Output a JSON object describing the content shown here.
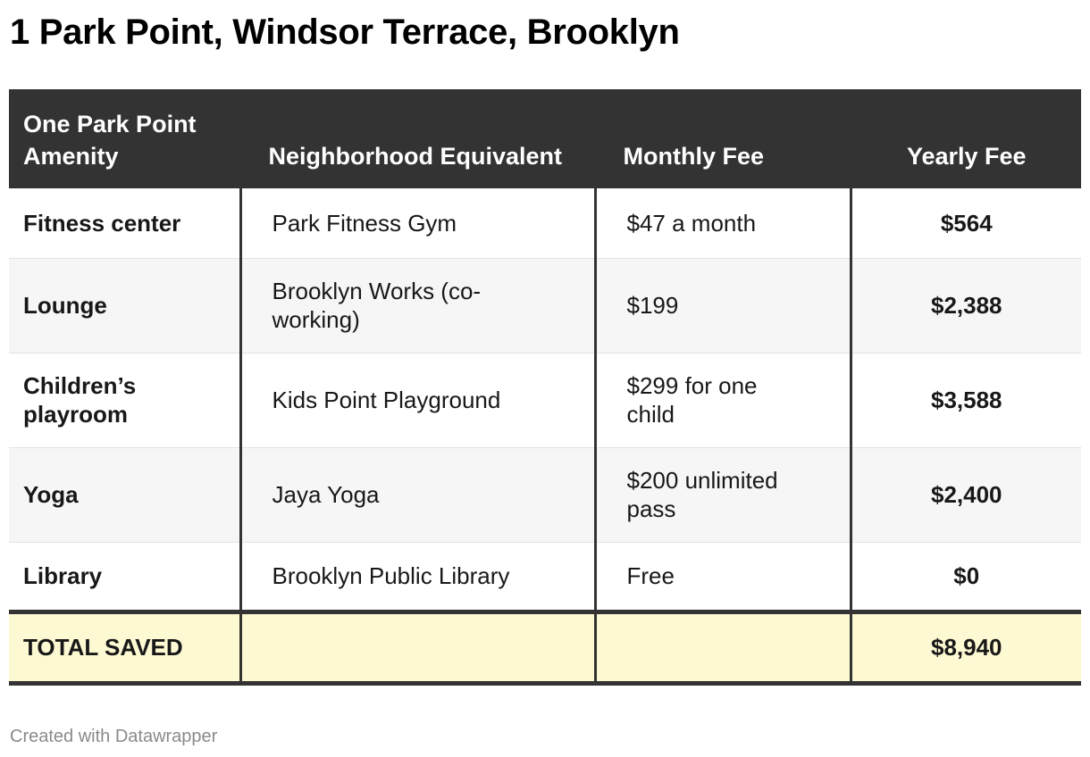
{
  "title": "1 Park Point, Windsor Terrace, Brooklyn",
  "credit": "Created with Datawrapper",
  "chart_data": {
    "type": "table",
    "columns": [
      "One Park Point Amenity",
      "Neighborhood Equivalent",
      "Monthly Fee",
      "Yearly Fee"
    ],
    "rows": [
      {
        "amenity": "Fitness center",
        "equivalent": "Park Fitness Gym",
        "monthly": "$47 a month",
        "yearly": "$564"
      },
      {
        "amenity": "Lounge",
        "equivalent": "Brooklyn Works (co-working)",
        "monthly": "$199",
        "yearly": "$2,388"
      },
      {
        "amenity": "Children’s playroom",
        "equivalent": "Kids Point Playground",
        "monthly": "$299 for one child",
        "yearly": "$3,588"
      },
      {
        "amenity": "Yoga",
        "equivalent": "Jaya Yoga",
        "monthly": "$200 unlimited pass",
        "yearly": "$2,400"
      },
      {
        "amenity": "Library",
        "equivalent": "Brooklyn Public Library",
        "monthly": "Free",
        "yearly": "$0"
      }
    ],
    "total": {
      "label": "TOTAL SAVED",
      "equivalent": "",
      "monthly": "",
      "yearly": "$8,940"
    }
  },
  "colors": {
    "header_background": "#333333",
    "header_text": "#ffffff",
    "row_alt_background": "#f6f6f6",
    "total_background": "#fdf9d3",
    "divider": "#333333"
  }
}
